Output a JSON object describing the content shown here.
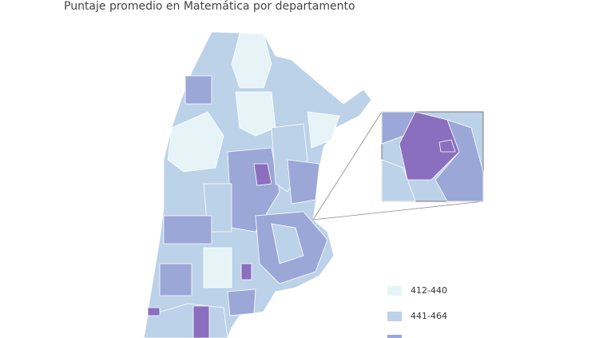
{
  "title": "Puntaje promedio en Matemática por departamento",
  "legend": [
    {
      "label": "412-440",
      "color": "#e6f4f8"
    },
    {
      "label": "441-464",
      "color": "#bcd2e8"
    },
    {
      "color": "#9ba7d6"
    }
  ]
}
